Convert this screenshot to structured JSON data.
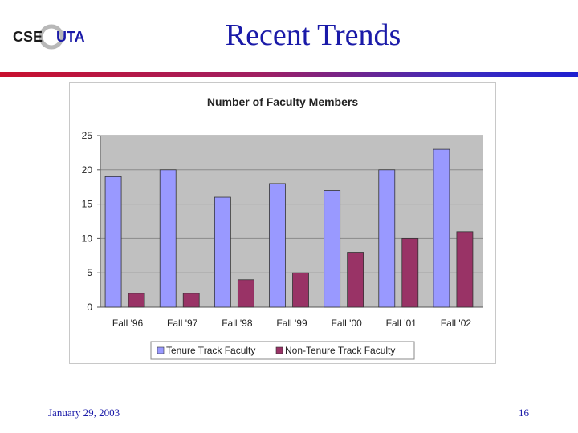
{
  "slide": {
    "title": "Recent Trends",
    "date": "January 29, 2003",
    "page_number": "16"
  },
  "logo": {
    "text_left": "CSE",
    "text_right": "UTA",
    "icon": "cse-uta-logo"
  },
  "colors": {
    "title": "#1a1aa8",
    "plot_bg": "#c0c0c0",
    "series_tenure": "#9999ff",
    "series_non_tenure": "#993366"
  },
  "chart_data": {
    "type": "bar",
    "title": "Number of Faculty Members",
    "xlabel": "",
    "ylabel": "",
    "categories": [
      "Fall '96",
      "Fall '97",
      "Fall '98",
      "Fall '99",
      "Fall '00",
      "Fall '01",
      "Fall '02"
    ],
    "series": [
      {
        "name": "Tenure Track Faculty",
        "values": [
          19,
          20,
          16,
          18,
          17,
          20,
          23
        ]
      },
      {
        "name": "Non-Tenure Track Faculty",
        "values": [
          2,
          2,
          4,
          5,
          8,
          10,
          11
        ]
      }
    ],
    "ylim": [
      0,
      25
    ],
    "yticks": [
      "0",
      "5",
      "10",
      "15",
      "20",
      "25"
    ],
    "grid": true,
    "legend": "bottom"
  }
}
